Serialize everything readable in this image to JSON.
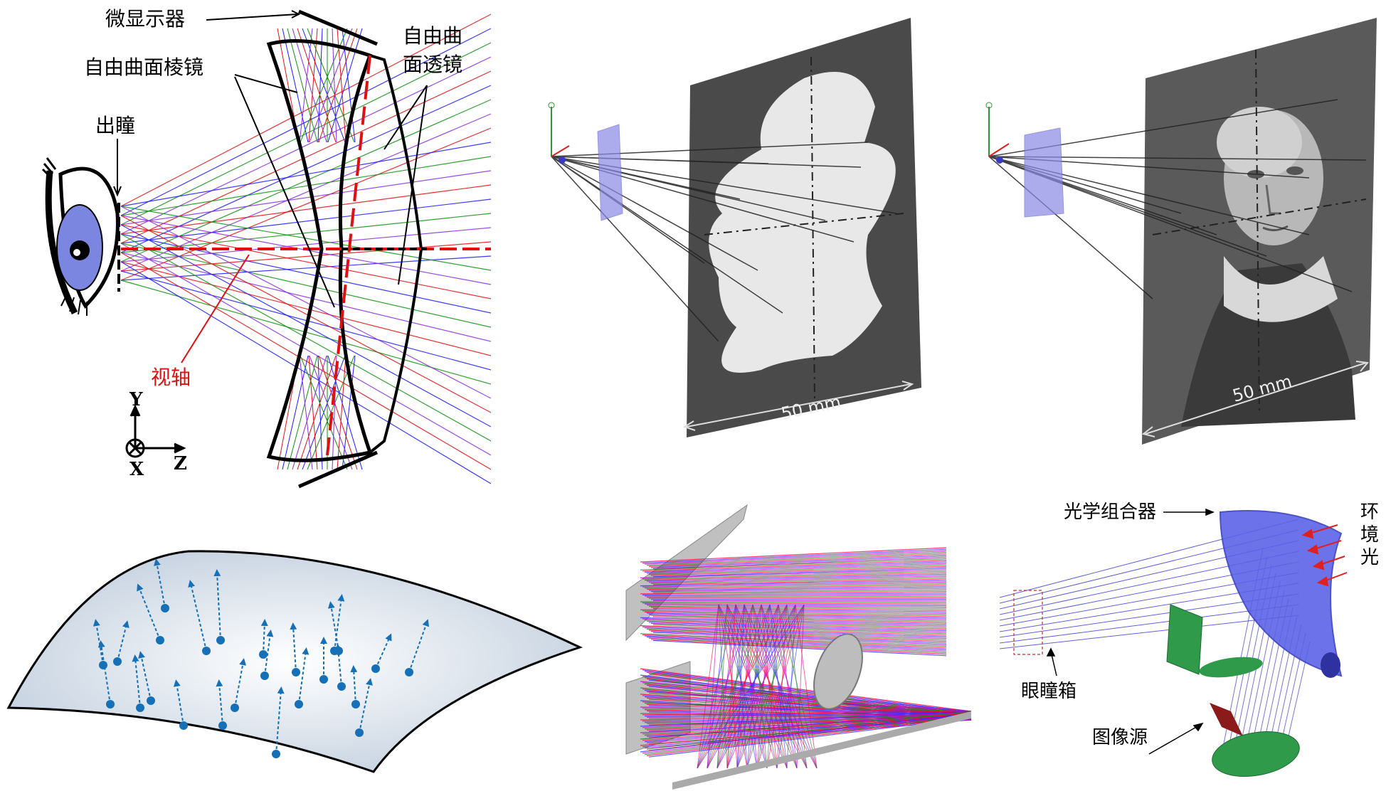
{
  "panel1": {
    "labels": {
      "micro_display": "微显示器",
      "prism": "自由曲面棱镜",
      "lens_line1": "自由曲",
      "lens_line2": "面透镜",
      "exit_pupil": "出瞳",
      "visual_axis": "视轴",
      "axis_y": "Y",
      "axis_x": "X",
      "axis_z": "Z"
    },
    "colors": {
      "ray_red": "#e01010",
      "ray_blue": "#1a1aff",
      "ray_green": "#109010",
      "ray_purple": "#8a2be2",
      "iris": "#7b86e0"
    }
  },
  "panel2": {
    "scale_label": "50 mm",
    "target_shape": "five-lobed blob",
    "screen_color": "#4a4a4a"
  },
  "panel3": {
    "scale_label": "50 mm",
    "target_shape": "grayscale portrait",
    "screen_color": "#5a5a5a"
  },
  "panel4": {
    "surface": "freeform surface with normal vectors",
    "arrow_color": "#1570b8"
  },
  "panel5": {
    "rays": "dense multicolor ray trace",
    "colors": [
      "#ff0040",
      "#3030ff",
      "#c000c0",
      "#2a7a2a"
    ]
  },
  "panel6": {
    "labels": {
      "combiner": "光学组合器",
      "ambient_1": "环",
      "ambient_2": "境",
      "ambient_3": "光",
      "eyebox": "眼瞳箱",
      "image_source": "图像源"
    },
    "colors": {
      "combiner": "#5b63e8",
      "beamsplitter": "#2e9a4a",
      "source": "#8b1a1a",
      "rays": "#3a3ad0"
    }
  }
}
